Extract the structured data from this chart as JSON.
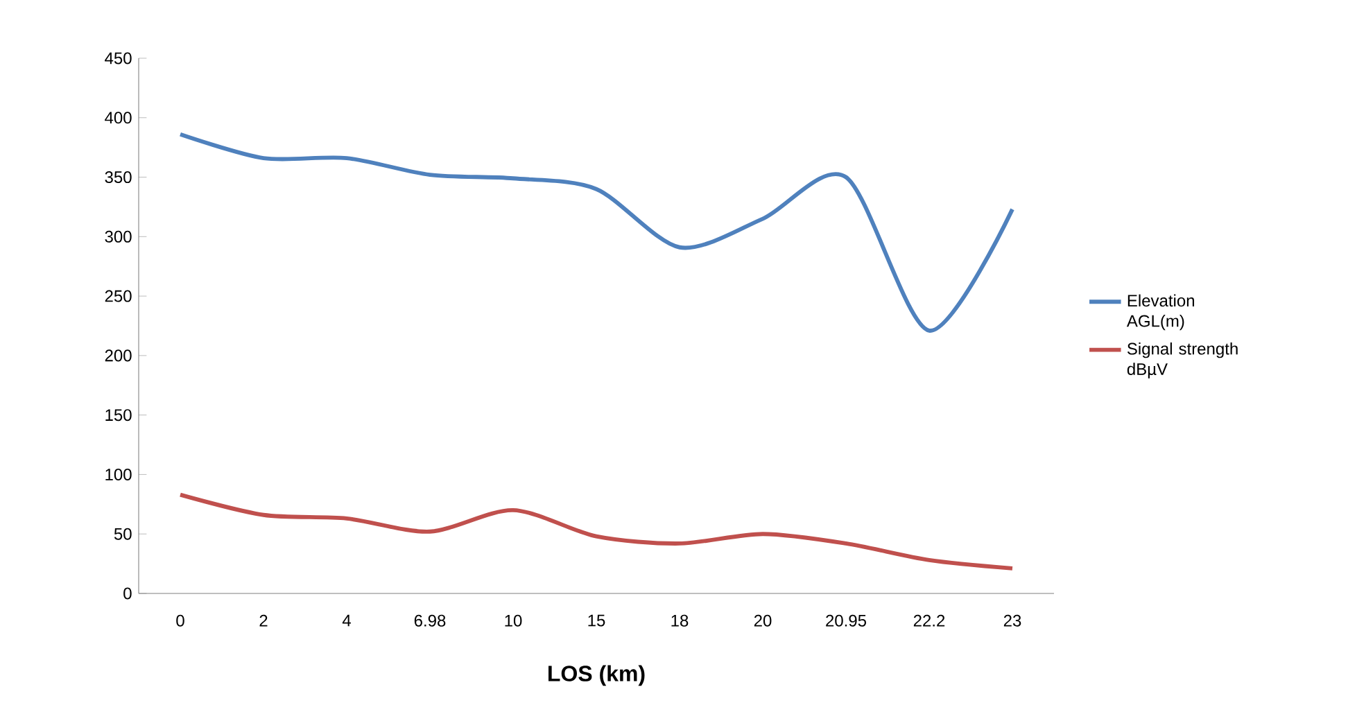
{
  "chart_data": {
    "type": "line",
    "xlabel": "LOS (km)",
    "categories": [
      "0",
      "2",
      "4",
      "6.98",
      "10",
      "15",
      "18",
      "20",
      "20.95",
      "22.2",
      "23"
    ],
    "series": [
      {
        "name": "Elevation AGL(m)",
        "color": "#4f81bd",
        "values": [
          386,
          366,
          366,
          352,
          349,
          340,
          291,
          315,
          350,
          221,
          323
        ]
      },
      {
        "name": "Signal strength dBµV",
        "color": "#c0504d",
        "values": [
          83,
          66,
          63,
          52,
          70,
          48,
          42,
          50,
          42,
          28,
          21
        ]
      }
    ],
    "ylim": [
      0,
      450
    ],
    "yticks": [
      0,
      50,
      100,
      150,
      200,
      250,
      300,
      350,
      400,
      450
    ],
    "legend": "right"
  }
}
